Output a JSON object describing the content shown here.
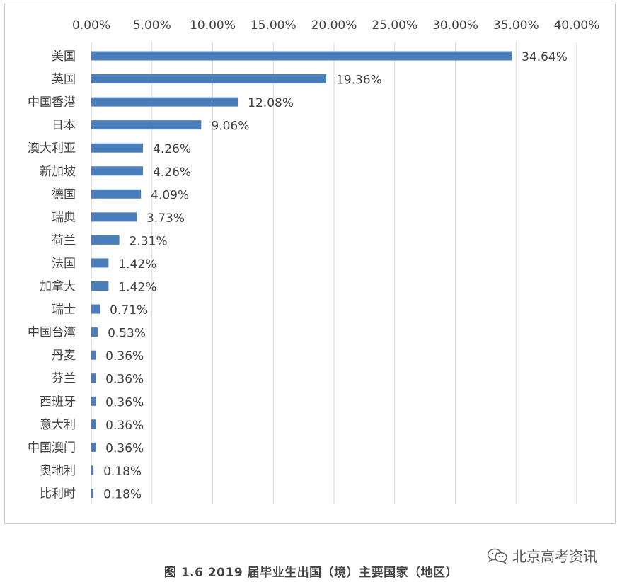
{
  "chart_data": {
    "type": "bar",
    "orientation": "horizontal",
    "categories": [
      "美国",
      "英国",
      "中国香港",
      "日本",
      "澳大利亚",
      "新加坡",
      "德国",
      "瑞典",
      "荷兰",
      "法国",
      "加拿大",
      "瑞士",
      "中国台湾",
      "丹麦",
      "芬兰",
      "西班牙",
      "意大利",
      "中国澳门",
      "奥地利",
      "比利时"
    ],
    "values": [
      34.64,
      19.36,
      12.08,
      9.06,
      4.26,
      4.26,
      4.09,
      3.73,
      2.31,
      1.42,
      1.42,
      0.71,
      0.53,
      0.36,
      0.36,
      0.36,
      0.36,
      0.36,
      0.18,
      0.18
    ],
    "value_labels": [
      "34.64%",
      "19.36%",
      "12.08%",
      "9.06%",
      "4.26%",
      "4.26%",
      "4.09%",
      "3.73%",
      "2.31%",
      "1.42%",
      "1.42%",
      "0.71%",
      "0.53%",
      "0.36%",
      "0.36%",
      "0.36%",
      "0.36%",
      "0.36%",
      "0.18%",
      "0.18%"
    ],
    "x_ticks": [
      0,
      5,
      10,
      15,
      20,
      25,
      30,
      35,
      40
    ],
    "x_tick_labels": [
      "0.00%",
      "5.00%",
      "10.00%",
      "15.00%",
      "20.00%",
      "25.00%",
      "30.00%",
      "35.00%",
      "40.00%"
    ],
    "xlim": [
      0,
      40
    ],
    "x_axis_position": "top",
    "grid": true,
    "bar_color": "#4a7ebb",
    "grid_color": "#d9d9d9"
  },
  "caption": "图 1.6  2019 届毕业生出国（境）主要国家（地区）",
  "watermark": {
    "text": "北京高考资讯",
    "icon": "wechat-icon"
  }
}
